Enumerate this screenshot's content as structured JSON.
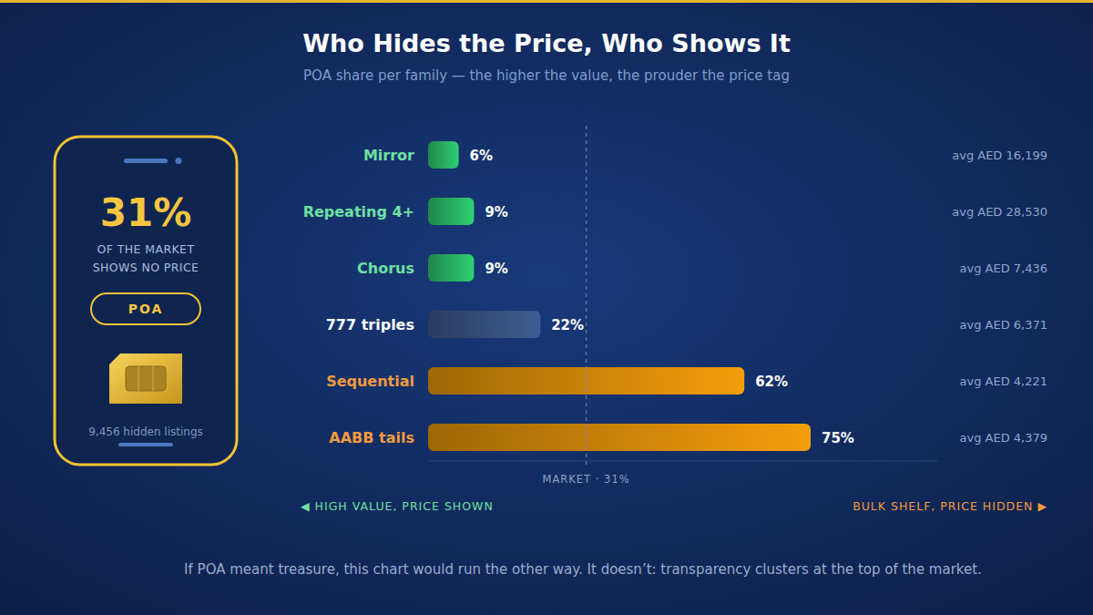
{
  "chart_data": {
    "type": "bar",
    "orientation": "horizontal",
    "title": "Who Hides the Price, Who Shows It",
    "subtitle": "POA share per family — the higher the value, the prouder the price tag",
    "categories": [
      "Mirror",
      "Repeating 4+",
      "Chorus",
      "777 triples",
      "Sequential",
      "AABB tails"
    ],
    "values": [
      6,
      9,
      9,
      22,
      62,
      75
    ],
    "value_labels": [
      "6%",
      "9%",
      "9%",
      "22%",
      "62%",
      "75%"
    ],
    "colors": [
      "#2fcf73",
      "#2fcf73",
      "#2fcf73",
      "#3f5d93",
      "#f59e0b",
      "#f59e0b"
    ],
    "data_labels": true,
    "tick_labels": false,
    "xlim": [
      0,
      100
    ],
    "avg_labels": [
      "avg AED 16,199",
      "avg AED 28,530",
      "avg AED 7,436",
      "avg AED 6,371",
      "avg AED 4,221",
      "avg AED 4,379"
    ],
    "reference_line": {
      "value": 31,
      "label": "MARKET · 31%"
    },
    "left_note": "◀ HIGH VALUE, PRICE SHOWN",
    "right_note": "BULK SHELF, PRICE HIDDEN ▶",
    "footnote": "If POA meant treasure, this chart would run the other way. It doesn’t: transparency clusters at the top of the market.",
    "panel": {
      "headline": "31%",
      "lines": [
        "OF THE MARKET",
        "SHOWS NO PRICE"
      ],
      "badge": "POA",
      "caption": "9,456 hidden listings"
    }
  }
}
